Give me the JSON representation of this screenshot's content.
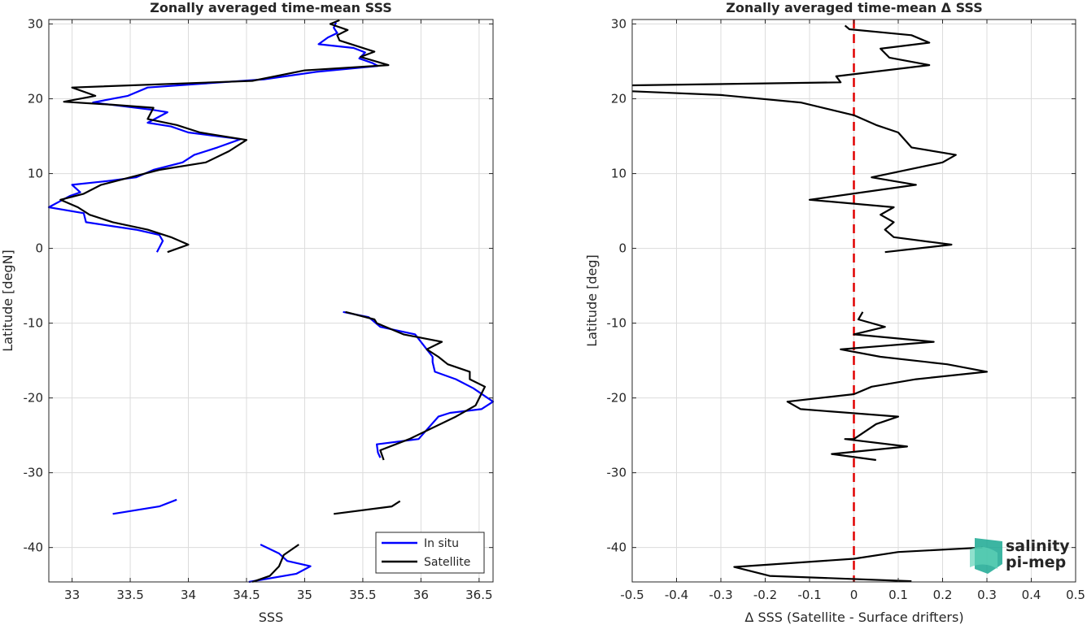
{
  "chart_data": [
    {
      "type": "line",
      "title": "Zonally averaged time-mean SSS",
      "xlabel": "SSS",
      "ylabel": "Latitude [degN]",
      "xlim": [
        32.8,
        36.62
      ],
      "ylim": [
        -44.6,
        30.6
      ],
      "xticks": [
        33,
        33.5,
        34,
        34.5,
        35,
        35.5,
        36,
        36.5
      ],
      "yticks": [
        -40,
        -30,
        -20,
        -10,
        0,
        10,
        20,
        30
      ],
      "grid": true,
      "legend_position": "bottom-right",
      "series": [
        {
          "name": "In situ",
          "color": "#0000ff",
          "segments": [
            [
              [
                35.27,
                30.2
              ],
              [
                35.25,
                29.5
              ],
              [
                35.28,
                28.8
              ],
              [
                35.2,
                28.2
              ],
              [
                35.12,
                27.3
              ],
              [
                35.42,
                26.8
              ],
              [
                35.52,
                26.2
              ],
              [
                35.47,
                25.4
              ],
              [
                35.58,
                24.8
              ],
              [
                35.63,
                24.4
              ],
              [
                35.1,
                23.6
              ],
              [
                34.65,
                22.6
              ],
              [
                33.65,
                21.5
              ],
              [
                33.48,
                20.4
              ],
              [
                33.18,
                19.5
              ],
              [
                33.7,
                18.5
              ],
              [
                33.82,
                18.2
              ],
              [
                33.65,
                16.8
              ],
              [
                33.85,
                16.3
              ],
              [
                34.0,
                15.5
              ],
              [
                34.45,
                14.6
              ],
              [
                34.25,
                13.5
              ],
              [
                34.05,
                12.5
              ],
              [
                33.95,
                11.5
              ],
              [
                33.7,
                10.5
              ],
              [
                33.55,
                9.5
              ],
              [
                33.3,
                9.0
              ],
              [
                33.0,
                8.5
              ],
              [
                33.07,
                7.5
              ],
              [
                32.98,
                7.0
              ],
              [
                32.8,
                5.5
              ],
              [
                33.1,
                4.7
              ],
              [
                33.12,
                3.5
              ],
              [
                33.55,
                2.5
              ],
              [
                33.75,
                1.8
              ],
              [
                33.78,
                1.0
              ],
              [
                33.73,
                -0.5
              ]
            ],
            [
              [
                35.33,
                -8.5
              ],
              [
                35.55,
                -9.2
              ],
              [
                35.65,
                -10.5
              ],
              [
                35.95,
                -11.5
              ],
              [
                36.05,
                -13.5
              ],
              [
                36.1,
                -14.5
              ],
              [
                36.1,
                -15.2
              ],
              [
                36.12,
                -16.5
              ],
              [
                36.3,
                -17.5
              ],
              [
                36.45,
                -18.7
              ],
              [
                36.62,
                -20.5
              ],
              [
                36.52,
                -21.5
              ],
              [
                36.25,
                -22.0
              ],
              [
                36.15,
                -22.5
              ],
              [
                35.98,
                -25.5
              ],
              [
                35.62,
                -26.2
              ],
              [
                35.63,
                -27.3
              ],
              [
                35.65,
                -28.0
              ]
            ],
            [
              [
                33.35,
                -35.5
              ],
              [
                33.75,
                -34.5
              ],
              [
                33.9,
                -33.6
              ]
            ],
            [
              [
                34.62,
                -39.6
              ],
              [
                34.78,
                -40.8
              ],
              [
                34.85,
                -41.8
              ],
              [
                35.05,
                -42.5
              ],
              [
                34.93,
                -43.5
              ],
              [
                34.52,
                -44.6
              ]
            ]
          ]
        },
        {
          "name": "Satellite",
          "color": "#000000",
          "segments": [
            [
              [
                35.3,
                30.5
              ],
              [
                35.22,
                30.0
              ],
              [
                35.37,
                29.2
              ],
              [
                35.28,
                28.5
              ],
              [
                35.3,
                27.8
              ],
              [
                35.6,
                26.3
              ],
              [
                35.48,
                25.6
              ],
              [
                35.72,
                24.5
              ],
              [
                35.0,
                23.8
              ],
              [
                34.55,
                22.4
              ],
              [
                33.0,
                21.5
              ],
              [
                33.2,
                20.4
              ],
              [
                32.93,
                19.6
              ],
              [
                33.35,
                19.2
              ],
              [
                33.7,
                18.8
              ],
              [
                33.65,
                17.3
              ],
              [
                33.9,
                16.5
              ],
              [
                34.1,
                15.5
              ],
              [
                34.5,
                14.5
              ],
              [
                34.35,
                13.0
              ],
              [
                34.15,
                11.5
              ],
              [
                33.75,
                10.5
              ],
              [
                33.5,
                9.5
              ],
              [
                33.25,
                8.5
              ],
              [
                33.1,
                7.3
              ],
              [
                32.9,
                6.5
              ],
              [
                33.05,
                5.5
              ],
              [
                33.15,
                4.5
              ],
              [
                33.35,
                3.5
              ],
              [
                33.65,
                2.5
              ],
              [
                33.85,
                1.5
              ],
              [
                34.0,
                0.5
              ],
              [
                33.82,
                -0.5
              ]
            ],
            [
              [
                35.35,
                -8.5
              ],
              [
                35.6,
                -9.5
              ],
              [
                35.62,
                -10.0
              ],
              [
                35.85,
                -11.5
              ],
              [
                36.18,
                -12.5
              ],
              [
                36.05,
                -13.5
              ],
              [
                36.15,
                -14.5
              ],
              [
                36.23,
                -15.5
              ],
              [
                36.42,
                -16.5
              ],
              [
                36.42,
                -17.5
              ],
              [
                36.55,
                -18.5
              ],
              [
                36.47,
                -21.0
              ],
              [
                36.3,
                -22.5
              ],
              [
                35.9,
                -25.5
              ],
              [
                35.65,
                -27.0
              ],
              [
                35.68,
                -28.3
              ]
            ],
            [
              [
                35.25,
                -35.5
              ],
              [
                35.75,
                -34.5
              ],
              [
                35.82,
                -33.8
              ]
            ],
            [
              [
                34.95,
                -39.6
              ],
              [
                34.82,
                -41.0
              ],
              [
                34.78,
                -42.5
              ],
              [
                34.7,
                -43.8
              ],
              [
                34.55,
                -44.6
              ]
            ]
          ]
        }
      ]
    },
    {
      "type": "line",
      "title": "Zonally averaged time-mean Δ SSS",
      "xlabel": "Δ SSS (Satellite - Surface drifters)",
      "ylabel": "Latitude [deg]",
      "xlim": [
        -0.5,
        0.5
      ],
      "ylim": [
        -44.6,
        30.6
      ],
      "xticks": [
        -0.5,
        -0.4,
        -0.3,
        -0.2,
        -0.1,
        0,
        0.1,
        0.2,
        0.3,
        0.4,
        0.5
      ],
      "yticks": [
        -40,
        -30,
        -20,
        -10,
        0,
        10,
        20,
        30
      ],
      "grid": true,
      "reference_line": {
        "x": 0,
        "color": "#e00000",
        "style": "dashed"
      },
      "series": [
        {
          "color": "#000000",
          "segments": [
            [
              [
                -0.02,
                29.8
              ],
              [
                -0.01,
                29.3
              ],
              [
                0.13,
                28.5
              ],
              [
                0.17,
                27.5
              ],
              [
                0.06,
                26.7
              ],
              [
                0.08,
                25.5
              ],
              [
                0.17,
                24.5
              ],
              [
                -0.04,
                23.0
              ],
              [
                -0.03,
                22.2
              ],
              [
                -0.5,
                21.8
              ]
            ],
            [
              [
                -0.5,
                21.0
              ],
              [
                -0.3,
                20.5
              ],
              [
                -0.12,
                19.5
              ],
              [
                0.0,
                17.8
              ],
              [
                0.05,
                16.5
              ],
              [
                0.1,
                15.5
              ],
              [
                0.13,
                13.5
              ],
              [
                0.23,
                12.5
              ],
              [
                0.2,
                11.5
              ],
              [
                0.04,
                9.5
              ],
              [
                0.14,
                8.5
              ],
              [
                -0.1,
                6.5
              ],
              [
                0.09,
                5.5
              ],
              [
                0.06,
                4.5
              ],
              [
                0.09,
                3.5
              ],
              [
                0.07,
                2.5
              ],
              [
                0.09,
                1.5
              ],
              [
                0.22,
                0.5
              ],
              [
                0.07,
                -0.5
              ]
            ],
            [
              [
                0.02,
                -8.5
              ],
              [
                0.01,
                -9.5
              ],
              [
                0.07,
                -10.5
              ],
              [
                0.0,
                -11.5
              ],
              [
                0.18,
                -12.5
              ],
              [
                -0.03,
                -13.5
              ],
              [
                0.06,
                -14.5
              ],
              [
                0.21,
                -15.5
              ],
              [
                0.3,
                -16.5
              ],
              [
                0.14,
                -17.5
              ],
              [
                0.04,
                -18.5
              ],
              [
                0.0,
                -19.5
              ],
              [
                -0.15,
                -20.5
              ],
              [
                -0.12,
                -21.5
              ],
              [
                0.1,
                -22.5
              ],
              [
                0.05,
                -23.5
              ],
              [
                0.0,
                -25.5
              ],
              [
                -0.02,
                -25.5
              ],
              [
                0.12,
                -26.5
              ],
              [
                -0.05,
                -27.5
              ],
              [
                0.05,
                -28.3
              ]
            ],
            [
              [
                0.29,
                -40.0
              ],
              [
                0.1,
                -40.6
              ],
              [
                0.0,
                -41.5
              ],
              [
                -0.27,
                -42.6
              ],
              [
                -0.19,
                -43.8
              ],
              [
                0.13,
                -44.5
              ]
            ]
          ]
        }
      ]
    }
  ],
  "logo": {
    "line1": "salinity",
    "line2": "pi-mep",
    "color": "#1aa892"
  }
}
